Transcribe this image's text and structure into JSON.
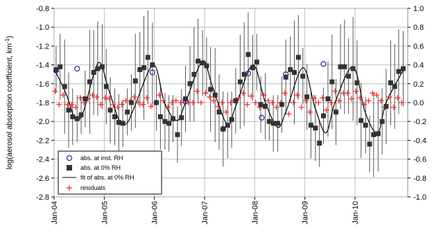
{
  "chart_data": {
    "type": "scatter",
    "title": "",
    "ylabel": "log(aerosol absorption coefficient, km",
    "ylabel_sup": "-1",
    "ylabel_close": ")",
    "xlabel": "",
    "ylim": [
      -2.8,
      -0.8
    ],
    "y2lim": [
      -1.0,
      1.0
    ],
    "yticks": [
      "-0.8",
      "-1.0",
      "-1.2",
      "-1.4",
      "-1.6",
      "-1.8",
      "-2.0",
      "-2.2",
      "-2.4",
      "-2.6",
      "-2.8"
    ],
    "y2ticks": [
      "1.0",
      "0.8",
      "0.6",
      "0.4",
      "0.2",
      "0.0",
      "-0.2",
      "-0.4",
      "-0.6",
      "-0.8",
      "-1.0"
    ],
    "xlim": [
      2004.0,
      2011.05
    ],
    "xticks": [
      {
        "label": "Jan-04",
        "x": 2004.0
      },
      {
        "label": "Jan-05",
        "x": 2005.0
      },
      {
        "label": "Jan-06",
        "x": 2006.0
      },
      {
        "label": "Jan-07",
        "x": 2007.0
      },
      {
        "label": "Jan-08",
        "x": 2008.0
      },
      {
        "label": "Jan-09",
        "x": 2009.0
      },
      {
        "label": "Jan-10",
        "x": 2010.0
      }
    ],
    "grid": true,
    "legend_position": "bottom-left",
    "legend": [
      {
        "key": "inst",
        "label": "abs. at inst. RH"
      },
      {
        "key": "zero",
        "label": "abs. at 0% RH"
      },
      {
        "key": "fit",
        "label": "fit of abs. at 0% RH"
      },
      {
        "key": "resid",
        "label": "residuals"
      }
    ],
    "series": [
      {
        "name": "abs. at 0% RH",
        "marker": "filled-square",
        "color": "#333333",
        "x": [
          2004.04,
          2004.12,
          2004.21,
          2004.29,
          2004.37,
          2004.46,
          2004.54,
          2004.62,
          2004.71,
          2004.79,
          2004.87,
          2004.96,
          2005.04,
          2005.12,
          2005.21,
          2005.29,
          2005.37,
          2005.46,
          2005.54,
          2005.62,
          2005.71,
          2005.79,
          2005.87,
          2005.96,
          2006.04,
          2006.12,
          2006.21,
          2006.29,
          2006.37,
          2006.46,
          2006.54,
          2006.62,
          2006.71,
          2006.79,
          2006.87,
          2006.96,
          2007.04,
          2007.12,
          2007.21,
          2007.29,
          2007.37,
          2007.46,
          2007.54,
          2007.62,
          2007.71,
          2007.79,
          2007.87,
          2007.96,
          2008.04,
          2008.12,
          2008.21,
          2008.29,
          2008.37,
          2008.46,
          2008.54,
          2008.62,
          2008.71,
          2008.79,
          2008.87,
          2008.96,
          2009.04,
          2009.12,
          2009.21,
          2009.29,
          2009.37,
          2009.46,
          2009.54,
          2009.62,
          2009.71,
          2009.79,
          2009.87,
          2009.96,
          2010.04,
          2010.12,
          2010.21,
          2010.29,
          2010.37,
          2010.46,
          2010.54,
          2010.62,
          2010.71,
          2010.79,
          2010.87,
          2010.96
        ],
        "y": [
          -1.45,
          -1.42,
          -1.63,
          -1.88,
          -1.95,
          -1.97,
          -1.93,
          -1.76,
          -1.58,
          -1.48,
          -1.44,
          -1.42,
          -1.63,
          -1.88,
          -1.95,
          -2.01,
          -2.02,
          -1.9,
          -1.8,
          -1.57,
          -1.45,
          -1.43,
          -1.32,
          -1.4,
          -1.8,
          -1.95,
          -2.0,
          -2.02,
          -1.97,
          -2.14,
          -1.96,
          -1.76,
          -1.6,
          -1.5,
          -1.36,
          -1.38,
          -1.41,
          -1.66,
          -1.72,
          -1.9,
          -2.08,
          -2.04,
          -1.98,
          -1.78,
          -1.58,
          -1.5,
          -1.29,
          -1.43,
          -1.37,
          -1.82,
          -1.84,
          -2.0,
          -2.02,
          -2.02,
          -1.82,
          -1.53,
          -1.45,
          -1.48,
          -1.32,
          -1.52,
          -1.74,
          -2.04,
          -2.07,
          -2.23,
          -1.94,
          -1.76,
          -1.58,
          -1.9,
          -1.42,
          -1.42,
          -1.52,
          -1.44,
          -1.59,
          -1.99,
          -2.04,
          -2.24,
          -2.14,
          -2.13,
          -2.0,
          -1.84,
          -1.59,
          -1.63,
          -1.47,
          -1.44
        ],
        "err": [
          0.25,
          0.35,
          0.5,
          0.4,
          0.3,
          0.25,
          0.2,
          0.3,
          0.55,
          0.45,
          0.5,
          0.45,
          0.4,
          0.35,
          0.3,
          0.3,
          0.25,
          0.25,
          0.3,
          0.5,
          0.4,
          0.55,
          0.5,
          0.45,
          0.3,
          0.35,
          0.3,
          0.3,
          0.25,
          0.3,
          0.3,
          0.35,
          0.4,
          0.5,
          0.45,
          0.35,
          0.3,
          0.45,
          0.5,
          0.4,
          0.4,
          0.35,
          0.3,
          0.35,
          0.5,
          0.55,
          0.45,
          0.35,
          0.3,
          0.3,
          0.35,
          0.2,
          0.3,
          0.3,
          0.3,
          0.4,
          0.35,
          0.55,
          0.45,
          0.3,
          0.35,
          0.35,
          0.35,
          0.25,
          0.3,
          0.4,
          0.5,
          0.35,
          0.45,
          0.5,
          0.4,
          0.55,
          0.45,
          0.4,
          0.3,
          0.3,
          0.45,
          0.4,
          0.35,
          0.4,
          0.45,
          0.45,
          0.45,
          0.4
        ]
      },
      {
        "name": "abs. at inst. RH",
        "marker": "open-circle",
        "color": "#1f2a8c",
        "x": [
          2004.04,
          2004.46,
          2005.96,
          2006.62,
          2007.37,
          2007.87,
          2008.14,
          2008.62,
          2009.37
        ],
        "y": [
          -1.46,
          -1.44,
          -1.48,
          -1.79,
          -2.08,
          -1.49,
          -1.96,
          -1.5,
          -1.39
        ]
      },
      {
        "name": "residuals",
        "marker": "plus",
        "color": "#ff2020",
        "x": [
          2004.02,
          2004.1,
          2004.18,
          2004.27,
          2004.35,
          2004.43,
          2004.52,
          2004.6,
          2004.68,
          2004.77,
          2004.85,
          2004.93,
          2005.02,
          2005.1,
          2005.18,
          2005.27,
          2005.35,
          2005.43,
          2005.52,
          2005.6,
          2005.68,
          2005.77,
          2005.85,
          2005.93,
          2006.02,
          2006.1,
          2006.18,
          2006.27,
          2006.35,
          2006.43,
          2006.52,
          2006.6,
          2006.68,
          2006.77,
          2006.85,
          2006.93,
          2007.02,
          2007.1,
          2007.18,
          2007.27,
          2007.35,
          2007.43,
          2007.52,
          2007.6,
          2007.68,
          2007.77,
          2007.85,
          2007.93,
          2008.02,
          2008.1,
          2008.18,
          2008.27,
          2008.35,
          2008.43,
          2008.52,
          2008.6,
          2008.68,
          2008.77,
          2008.85,
          2008.93,
          2009.02,
          2009.1,
          2009.18,
          2009.27,
          2009.35,
          2009.43,
          2009.52,
          2009.6,
          2009.68,
          2009.77,
          2009.85,
          2009.93,
          2010.02,
          2010.1,
          2010.18,
          2010.27,
          2010.35,
          2010.43,
          2010.52,
          2010.6,
          2010.68,
          2010.77,
          2010.85,
          2010.93
        ],
        "y": [
          0.12,
          -0.02,
          0.08,
          -0.02,
          -0.02,
          -0.05,
          0.05,
          0.0,
          0.04,
          0.08,
          0.06,
          -0.02,
          0.05,
          0.04,
          -0.02,
          -0.05,
          -0.02,
          0.02,
          0.02,
          0.06,
          0.0,
          -0.02,
          0.05,
          -0.04,
          0.0,
          0.08,
          0.02,
          -0.05,
          0.0,
          0.02,
          0.0,
          0.03,
          0.0,
          0.0,
          0.12,
          0.0,
          0.1,
          0.06,
          0.02,
          -0.04,
          0.0,
          -0.1,
          0.0,
          0.02,
          0.05,
          0.1,
          -0.02,
          0.07,
          0.0,
          -0.05,
          0.08,
          0.02,
          0.0,
          -0.05,
          0.0,
          0.1,
          -0.12,
          0.0,
          0.08,
          -0.05,
          0.02,
          -0.1,
          0.05,
          0.0,
          0.05,
          -0.08,
          0.0,
          0.12,
          0.02,
          0.1,
          0.1,
          0.04,
          0.12,
          0.05,
          -0.02,
          0.02,
          0.1,
          0.08,
          0.02,
          -0.05,
          0.06,
          -0.05,
          0.05,
          0.0
        ]
      },
      {
        "name": "fit of abs. at0% RH",
        "type": "line",
        "color": "#000000",
        "x": [
          2004.0,
          2004.25,
          2004.42,
          2004.58,
          2004.88,
          2005.08,
          2005.3,
          2005.45,
          2005.6,
          2005.98,
          2006.2,
          2006.45,
          2006.62,
          2006.96,
          2007.15,
          2007.45,
          2007.62,
          2007.96,
          2008.2,
          2008.45,
          2008.62,
          2008.96,
          2009.2,
          2009.42,
          2009.6,
          2009.96,
          2010.2,
          2010.45,
          2010.62,
          2011.0
        ],
        "y": [
          -1.44,
          -1.72,
          -1.97,
          -1.9,
          -1.38,
          -1.65,
          -1.99,
          -2.02,
          -1.85,
          -1.4,
          -1.8,
          -1.99,
          -1.8,
          -1.36,
          -1.62,
          -2.03,
          -1.84,
          -1.4,
          -1.78,
          -2.06,
          -1.9,
          -1.43,
          -1.85,
          -2.12,
          -1.8,
          -1.42,
          -1.9,
          -2.12,
          -1.8,
          -1.42
        ]
      }
    ]
  }
}
